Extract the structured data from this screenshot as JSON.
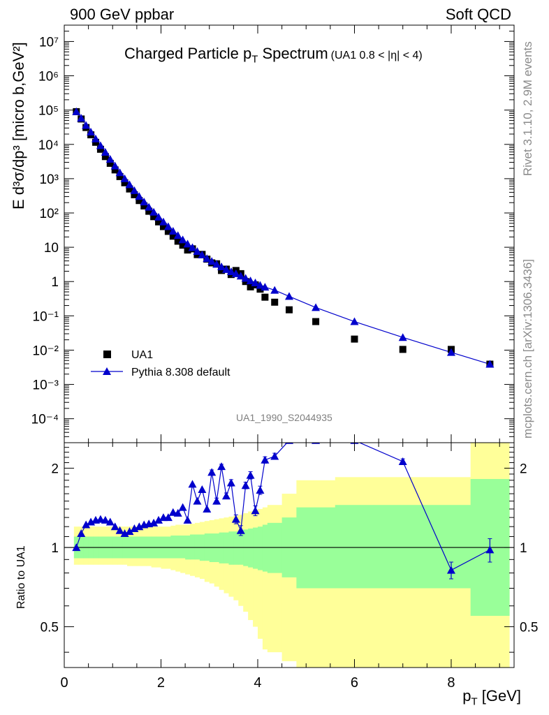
{
  "header": {
    "left": "900 GeV ppbar",
    "right": "Soft QCD"
  },
  "side": {
    "rivet": "Rivet 3.1.10,  2.9M events",
    "site": "mcplots.cern.ch [arXiv:1306.3436]"
  },
  "analysis_id": "UA1_1990_S2044935",
  "chart_data": [
    {
      "type": "scatter",
      "title_main": "Charged Particle p",
      "title_sub": "T",
      "title_main2": " Spectrum",
      "title_extra": "(UA1 0.8 < |η| < 4)",
      "ylabel": "E d³σ/dp³ [micro b,GeV²]",
      "yscale": "log",
      "ylim": [
        2e-05,
        30000000
      ],
      "xlim": [
        0,
        9.3
      ],
      "ytick_labels": [
        "10⁴",
        "10⁵",
        "10⁶",
        "10⁷"
      ],
      "series": [
        {
          "name": "UA1",
          "marker": "square",
          "color": "#000000",
          "x": [
            0.25,
            0.35,
            0.45,
            0.55,
            0.65,
            0.75,
            0.85,
            0.95,
            1.05,
            1.15,
            1.25,
            1.35,
            1.45,
            1.55,
            1.65,
            1.75,
            1.85,
            1.95,
            2.05,
            2.15,
            2.25,
            2.35,
            2.45,
            2.55,
            2.65,
            2.75,
            2.85,
            2.95,
            3.05,
            3.15,
            3.25,
            3.35,
            3.45,
            3.55,
            3.65,
            3.75,
            3.85,
            3.95,
            4.05,
            4.15,
            4.35,
            4.65,
            5.2,
            6.0,
            7.0,
            8.0,
            8.8
          ],
          "y": [
            90000,
            55000,
            31000,
            19000,
            11500,
            7200,
            4400,
            2800,
            1800,
            1150,
            760,
            500,
            340,
            230,
            160,
            112,
            78,
            55,
            40,
            29,
            21,
            15,
            11.5,
            8.3,
            9.0,
            6.1,
            6.2,
            4.5,
            3.5,
            3.3,
            2.1,
            2.3,
            1.6,
            2.1,
            1.7,
            1.0,
            0.7,
            0.8,
            0.6,
            0.35,
            0.25,
            0.15,
            0.068,
            0.021,
            0.0105,
            0.0105,
            0.0039
          ]
        },
        {
          "name": "Pythia 8.308 default",
          "marker": "triangle",
          "color": "#0000cc",
          "x": [
            0.25,
            0.35,
            0.45,
            0.55,
            0.65,
            0.75,
            0.85,
            0.95,
            1.05,
            1.15,
            1.25,
            1.35,
            1.45,
            1.55,
            1.65,
            1.75,
            1.85,
            1.95,
            2.05,
            2.15,
            2.25,
            2.35,
            2.45,
            2.55,
            2.65,
            2.75,
            2.85,
            2.95,
            3.05,
            3.15,
            3.25,
            3.35,
            3.45,
            3.55,
            3.65,
            3.75,
            3.85,
            3.95,
            4.05,
            4.15,
            4.35,
            4.65,
            5.2,
            6.0,
            7.0,
            8.0,
            8.8
          ],
          "y": [
            90000,
            58000,
            36000,
            23000,
            14500,
            9200,
            5900,
            3700,
            2350,
            1500,
            1000,
            670,
            450,
            305,
            210,
            148,
            106,
            76,
            55,
            40,
            29.5,
            22,
            16.5,
            12.5,
            9.8,
            7.6,
            6.0,
            4.7,
            3.9,
            3.2,
            2.7,
            2.25,
            1.95,
            1.7,
            1.45,
            1.25,
            1.05,
            0.92,
            0.78,
            0.69,
            0.56,
            0.37,
            0.175,
            0.068,
            0.0235,
            0.0086,
            0.0039
          ]
        }
      ],
      "legend_position": "lower-left"
    },
    {
      "type": "line",
      "ylabel": "Ratio to UA1",
      "xlabel": "p",
      "xlabel_sub": "T",
      "xlabel_unit": " [GeV]",
      "yscale": "log",
      "ylim": [
        0.35,
        2.5
      ],
      "xlim": [
        0,
        9.3
      ],
      "xticks": [
        0,
        2,
        4,
        6,
        8
      ],
      "yticks": [
        0.5,
        1,
        2
      ],
      "reference_line": 1,
      "series": [
        {
          "name": "Pythia 8.308 default",
          "color": "#0000cc",
          "x": [
            0.25,
            0.35,
            0.45,
            0.55,
            0.65,
            0.75,
            0.85,
            0.95,
            1.05,
            1.15,
            1.25,
            1.35,
            1.45,
            1.55,
            1.65,
            1.75,
            1.85,
            1.95,
            2.05,
            2.15,
            2.25,
            2.35,
            2.45,
            2.55,
            2.65,
            2.75,
            2.85,
            2.95,
            3.05,
            3.15,
            3.25,
            3.35,
            3.45,
            3.55,
            3.65,
            3.75,
            3.85,
            3.95,
            4.05,
            4.15,
            4.35,
            4.65,
            5.2,
            6.0,
            7.0,
            8.0,
            8.8
          ],
          "y": [
            1.0,
            1.13,
            1.22,
            1.25,
            1.27,
            1.28,
            1.27,
            1.25,
            1.2,
            1.16,
            1.13,
            1.15,
            1.18,
            1.2,
            1.22,
            1.23,
            1.24,
            1.27,
            1.3,
            1.3,
            1.36,
            1.35,
            1.42,
            1.27,
            1.74,
            1.5,
            1.66,
            1.4,
            1.93,
            1.5,
            2.03,
            1.57,
            1.76,
            1.28,
            1.16,
            1.72,
            1.88,
            1.38,
            1.65,
            2.15,
            2.22,
            2.55,
            2.55,
            2.55,
            2.12,
            0.82,
            0.98
          ],
          "err": [
            0.02,
            0.02,
            0.02,
            0.02,
            0.02,
            0.02,
            0.02,
            0.02,
            0.02,
            0.02,
            0.02,
            0.02,
            0.02,
            0.02,
            0.02,
            0.02,
            0.02,
            0.02,
            0.02,
            0.02,
            0.02,
            0.02,
            0.02,
            0.02,
            0.03,
            0.03,
            0.03,
            0.03,
            0.04,
            0.04,
            0.04,
            0.04,
            0.05,
            0.05,
            0.05,
            0.05,
            0.06,
            0.06,
            0.06,
            0.06,
            0.06,
            0.05,
            0.05,
            0.05,
            0.05,
            0.06,
            0.1
          ]
        }
      ],
      "bands": {
        "edges": [
          0.2,
          0.3,
          0.4,
          0.5,
          0.6,
          0.7,
          0.8,
          0.9,
          1.0,
          1.1,
          1.2,
          1.3,
          1.4,
          1.5,
          1.6,
          1.7,
          1.8,
          1.9,
          2.0,
          2.1,
          2.2,
          2.3,
          2.4,
          2.5,
          2.6,
          2.7,
          2.8,
          2.9,
          3.0,
          3.1,
          3.2,
          3.3,
          3.4,
          3.5,
          3.6,
          3.7,
          3.8,
          3.9,
          4.0,
          4.1,
          4.2,
          4.5,
          4.8,
          5.6,
          6.4,
          7.6,
          8.4,
          9.2
        ],
        "green_up": [
          1.1,
          1.1,
          1.1,
          1.1,
          1.1,
          1.1,
          1.1,
          1.1,
          1.1,
          1.1,
          1.1,
          1.1,
          1.1,
          1.1,
          1.1,
          1.1,
          1.1,
          1.1,
          1.1,
          1.1,
          1.11,
          1.11,
          1.11,
          1.11,
          1.12,
          1.12,
          1.12,
          1.13,
          1.13,
          1.13,
          1.14,
          1.14,
          1.15,
          1.15,
          1.16,
          1.17,
          1.18,
          1.19,
          1.2,
          1.22,
          1.24,
          1.3,
          1.42,
          1.45,
          1.45,
          1.45,
          1.82
        ],
        "green_dn": [
          0.91,
          0.91,
          0.91,
          0.91,
          0.91,
          0.91,
          0.91,
          0.91,
          0.91,
          0.91,
          0.91,
          0.91,
          0.91,
          0.91,
          0.91,
          0.91,
          0.91,
          0.91,
          0.91,
          0.91,
          0.91,
          0.91,
          0.91,
          0.9,
          0.9,
          0.9,
          0.89,
          0.89,
          0.88,
          0.88,
          0.87,
          0.87,
          0.86,
          0.86,
          0.86,
          0.85,
          0.84,
          0.83,
          0.82,
          0.81,
          0.8,
          0.77,
          0.7,
          0.7,
          0.7,
          0.7,
          0.55
        ],
        "yellow_up": [
          1.2,
          1.2,
          1.2,
          1.2,
          1.2,
          1.2,
          1.2,
          1.2,
          1.2,
          1.2,
          1.2,
          1.2,
          1.2,
          1.2,
          1.2,
          1.2,
          1.2,
          1.2,
          1.2,
          1.2,
          1.21,
          1.22,
          1.22,
          1.22,
          1.23,
          1.24,
          1.25,
          1.26,
          1.27,
          1.28,
          1.29,
          1.3,
          1.31,
          1.32,
          1.33,
          1.35,
          1.37,
          1.39,
          1.4,
          1.42,
          1.45,
          1.6,
          1.8,
          1.85,
          1.85,
          1.85,
          2.6
        ],
        "yellow_dn": [
          0.86,
          0.86,
          0.86,
          0.86,
          0.86,
          0.86,
          0.86,
          0.86,
          0.86,
          0.86,
          0.86,
          0.85,
          0.85,
          0.85,
          0.85,
          0.85,
          0.84,
          0.84,
          0.83,
          0.83,
          0.82,
          0.81,
          0.8,
          0.79,
          0.78,
          0.77,
          0.76,
          0.74,
          0.73,
          0.71,
          0.69,
          0.67,
          0.65,
          0.63,
          0.6,
          0.57,
          0.53,
          0.5,
          0.45,
          0.41,
          0.4,
          0.37,
          0.3,
          0.3,
          0.3,
          0.3,
          0.3
        ]
      }
    }
  ]
}
